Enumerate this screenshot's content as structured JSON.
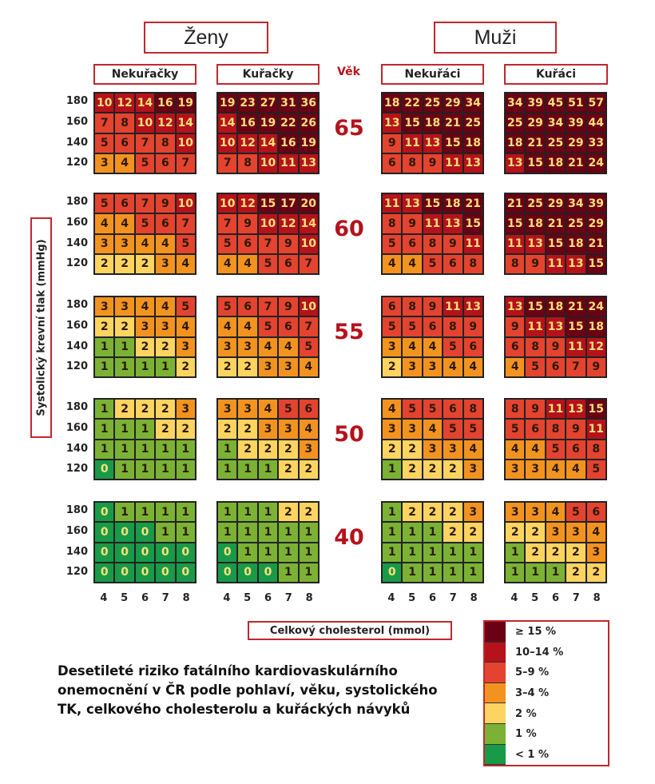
{
  "headers": {
    "women": "Ženy",
    "men": "Muži",
    "women_nonsmokers": "Nekuřačky",
    "women_smokers": "Kuřačky",
    "men_nonsmokers": "Nekuřáci",
    "men_smokers": "Kuřáci",
    "age_label": "Věk"
  },
  "y_axis_label": "Systolický krevní tlak (mmHg)",
  "x_axis_label": "Celkový cholesterol (mmol)",
  "description": "Desetileté riziko fatálního kardiovaskulárního onemocnění v ČR podle pohlaví, věku, systolického TK, celkového cholesterolu a kuřáckých návyků",
  "legend": [
    {
      "label": "≥ 15 %",
      "color": "#6b0014"
    },
    {
      "label": "10–14 %",
      "color": "#b5121b"
    },
    {
      "label": "5–9 %",
      "color": "#e4432f"
    },
    {
      "label": "3–4 %",
      "color": "#f3931f"
    },
    {
      "label": "2 %",
      "color": "#fdd460"
    },
    {
      "label": "1 %",
      "color": "#7bb234"
    },
    {
      "label": "< 1 %",
      "color": "#189a49"
    }
  ],
  "chart_data": {
    "type": "heatmap",
    "x_ticks": [
      "4",
      "5",
      "6",
      "7",
      "8"
    ],
    "y_ticks": [
      "180",
      "160",
      "140",
      "120"
    ],
    "groups": [
      "Nekuřačky",
      "Kuřačky",
      "Nekuřáci",
      "Kuřáci"
    ],
    "panels": [
      {
        "age": "65",
        "grids": [
          [
            [
              10,
              12,
              14,
              16,
              19
            ],
            [
              7,
              8,
              10,
              12,
              14
            ],
            [
              5,
              6,
              7,
              8,
              10
            ],
            [
              3,
              4,
              5,
              6,
              7
            ]
          ],
          [
            [
              19,
              23,
              27,
              31,
              36
            ],
            [
              14,
              16,
              19,
              22,
              26
            ],
            [
              10,
              12,
              14,
              16,
              19
            ],
            [
              7,
              8,
              10,
              11,
              13
            ]
          ],
          [
            [
              18,
              22,
              25,
              29,
              34
            ],
            [
              13,
              15,
              18,
              21,
              25
            ],
            [
              9,
              11,
              13,
              15,
              18
            ],
            [
              6,
              8,
              9,
              11,
              13
            ]
          ],
          [
            [
              34,
              39,
              45,
              51,
              57
            ],
            [
              25,
              29,
              34,
              39,
              44
            ],
            [
              18,
              21,
              25,
              29,
              33
            ],
            [
              13,
              15,
              18,
              21,
              24
            ]
          ]
        ]
      },
      {
        "age": "60",
        "grids": [
          [
            [
              5,
              6,
              7,
              9,
              10
            ],
            [
              4,
              4,
              5,
              6,
              7
            ],
            [
              3,
              3,
              4,
              4,
              5
            ],
            [
              2,
              2,
              2,
              3,
              4
            ]
          ],
          [
            [
              10,
              12,
              15,
              17,
              20
            ],
            [
              7,
              9,
              10,
              12,
              14
            ],
            [
              5,
              6,
              7,
              9,
              10
            ],
            [
              4,
              4,
              5,
              6,
              7
            ]
          ],
          [
            [
              11,
              13,
              15,
              18,
              21
            ],
            [
              8,
              9,
              11,
              13,
              15
            ],
            [
              5,
              6,
              8,
              9,
              11
            ],
            [
              4,
              4,
              5,
              6,
              8
            ]
          ],
          [
            [
              21,
              25,
              29,
              34,
              39
            ],
            [
              15,
              18,
              21,
              25,
              29
            ],
            [
              11,
              13,
              15,
              18,
              21
            ],
            [
              8,
              9,
              11,
              13,
              15
            ]
          ]
        ]
      },
      {
        "age": "55",
        "grids": [
          [
            [
              3,
              3,
              4,
              4,
              5
            ],
            [
              2,
              2,
              3,
              3,
              4
            ],
            [
              1,
              1,
              2,
              2,
              3
            ],
            [
              1,
              1,
              1,
              1,
              2
            ]
          ],
          [
            [
              5,
              6,
              7,
              9,
              10
            ],
            [
              4,
              4,
              5,
              6,
              7
            ],
            [
              3,
              3,
              4,
              4,
              5
            ],
            [
              2,
              2,
              3,
              3,
              4
            ]
          ],
          [
            [
              6,
              8,
              9,
              11,
              13
            ],
            [
              5,
              5,
              6,
              8,
              9
            ],
            [
              3,
              4,
              4,
              5,
              6
            ],
            [
              2,
              3,
              3,
              4,
              4
            ]
          ],
          [
            [
              13,
              15,
              18,
              21,
              24
            ],
            [
              9,
              11,
              13,
              15,
              18
            ],
            [
              6,
              8,
              9,
              11,
              12
            ],
            [
              4,
              5,
              6,
              7,
              9
            ]
          ]
        ]
      },
      {
        "age": "50",
        "grids": [
          [
            [
              1,
              2,
              2,
              2,
              3
            ],
            [
              1,
              1,
              1,
              2,
              2
            ],
            [
              1,
              1,
              1,
              1,
              1
            ],
            [
              0,
              1,
              1,
              1,
              1
            ]
          ],
          [
            [
              3,
              3,
              4,
              5,
              6
            ],
            [
              2,
              2,
              3,
              3,
              4
            ],
            [
              1,
              2,
              2,
              2,
              3
            ],
            [
              1,
              1,
              1,
              2,
              2
            ]
          ],
          [
            [
              4,
              5,
              5,
              6,
              8
            ],
            [
              3,
              3,
              4,
              5,
              5
            ],
            [
              2,
              2,
              3,
              3,
              4
            ],
            [
              1,
              2,
              2,
              2,
              3
            ]
          ],
          [
            [
              8,
              9,
              11,
              13,
              15
            ],
            [
              5,
              6,
              8,
              9,
              11
            ],
            [
              4,
              4,
              5,
              6,
              8
            ],
            [
              3,
              3,
              4,
              4,
              5
            ]
          ]
        ]
      },
      {
        "age": "40",
        "grids": [
          [
            [
              0,
              1,
              1,
              1,
              1
            ],
            [
              0,
              0,
              0,
              1,
              1
            ],
            [
              0,
              0,
              0,
              0,
              0
            ],
            [
              0,
              0,
              0,
              0,
              0
            ]
          ],
          [
            [
              1,
              1,
              1,
              2,
              2
            ],
            [
              1,
              1,
              1,
              1,
              1
            ],
            [
              0,
              1,
              1,
              1,
              1
            ],
            [
              0,
              0,
              0,
              1,
              1
            ]
          ],
          [
            [
              1,
              2,
              2,
              2,
              3
            ],
            [
              1,
              1,
              1,
              2,
              2
            ],
            [
              1,
              1,
              1,
              1,
              1
            ],
            [
              0,
              1,
              1,
              1,
              1
            ]
          ],
          [
            [
              3,
              3,
              4,
              5,
              6
            ],
            [
              2,
              2,
              3,
              3,
              4
            ],
            [
              1,
              2,
              2,
              2,
              3
            ],
            [
              1,
              1,
              1,
              2,
              2
            ]
          ]
        ]
      }
    ]
  }
}
